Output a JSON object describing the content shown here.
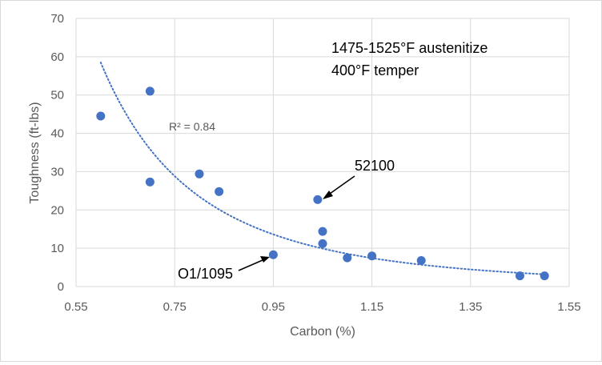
{
  "chart_data": {
    "type": "scatter",
    "xlabel": "Carbon (%)",
    "ylabel": "Toughness (ft-lbs)",
    "xlim": [
      0.55,
      1.55
    ],
    "ylim": [
      0,
      70
    ],
    "x_ticks": [
      "0.55",
      "0.75",
      "0.95",
      "1.15",
      "1.35",
      "1.55"
    ],
    "y_ticks": [
      "0",
      "10",
      "20",
      "30",
      "40",
      "50",
      "60",
      "70"
    ],
    "grid": "vertical and horizontal major gridlines",
    "marker_color": "#4472c4",
    "trendline_color": "#4472c4",
    "points": [
      {
        "x": 0.6,
        "y": 44.5
      },
      {
        "x": 0.7,
        "y": 51.0
      },
      {
        "x": 0.7,
        "y": 27.3
      },
      {
        "x": 0.8,
        "y": 29.4
      },
      {
        "x": 0.84,
        "y": 24.8
      },
      {
        "x": 0.95,
        "y": 8.3
      },
      {
        "x": 1.04,
        "y": 22.7
      },
      {
        "x": 1.05,
        "y": 14.4
      },
      {
        "x": 1.05,
        "y": 11.2
      },
      {
        "x": 1.1,
        "y": 7.5
      },
      {
        "x": 1.15,
        "y": 8.0
      },
      {
        "x": 1.25,
        "y": 6.8
      },
      {
        "x": 1.45,
        "y": 2.8
      },
      {
        "x": 1.5,
        "y": 2.8
      }
    ],
    "trendline": {
      "type": "power",
      "x_range": [
        0.6,
        1.5
      ],
      "approx_points": [
        {
          "x": 0.6,
          "y": 58.5
        },
        {
          "x": 0.75,
          "y": 30.0
        },
        {
          "x": 0.95,
          "y": 13.9
        },
        {
          "x": 1.15,
          "y": 7.6
        },
        {
          "x": 1.35,
          "y": 4.4
        },
        {
          "x": 1.5,
          "y": 3.2
        }
      ],
      "r_squared_label": "R² = 0.84"
    },
    "annotations": {
      "conditions_line1": "1475-1525°F austenitize",
      "conditions_line2": "400°F temper",
      "label_52100": "52100",
      "label_o1": "O1/1095"
    }
  }
}
